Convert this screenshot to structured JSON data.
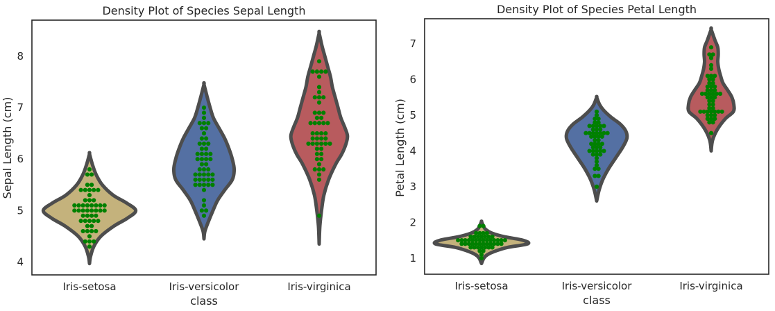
{
  "chart_data": [
    {
      "type": "violin",
      "title": "Density Plot of Species Sepal Length",
      "xlabel": "class",
      "ylabel": "Sepal Length (cm)",
      "ylim": [
        3.75,
        8.7
      ],
      "yticks": [
        4,
        5,
        6,
        7,
        8
      ],
      "categories": [
        "Iris-setosa",
        "Iris-versicolor",
        "Iris-virginica"
      ],
      "colors": [
        "#c4b27c",
        "#5470a3",
        "#b85b5e"
      ],
      "point_color": "#008000",
      "violins": [
        {
          "category": "Iris-setosa",
          "profile": [
            [
              3.97,
              0
            ],
            [
              4.1,
              0.02
            ],
            [
              4.3,
              0.09
            ],
            [
              4.5,
              0.24
            ],
            [
              4.7,
              0.52
            ],
            [
              4.85,
              0.8
            ],
            [
              5.0,
              0.98
            ],
            [
              5.15,
              0.78
            ],
            [
              5.3,
              0.5
            ],
            [
              5.5,
              0.27
            ],
            [
              5.7,
              0.14
            ],
            [
              5.9,
              0.06
            ],
            [
              6.1,
              0
            ]
          ],
          "points": [
            4.3,
            4.4,
            4.4,
            4.4,
            4.5,
            4.6,
            4.6,
            4.6,
            4.6,
            4.7,
            4.7,
            4.8,
            4.8,
            4.8,
            4.8,
            4.8,
            4.9,
            4.9,
            4.9,
            4.9,
            5.0,
            5.0,
            5.0,
            5.0,
            5.0,
            5.0,
            5.0,
            5.0,
            5.1,
            5.1,
            5.1,
            5.1,
            5.1,
            5.1,
            5.1,
            5.1,
            5.2,
            5.2,
            5.2,
            5.3,
            5.4,
            5.4,
            5.4,
            5.4,
            5.4,
            5.5,
            5.5,
            5.7,
            5.7,
            5.8
          ]
        },
        {
          "category": "Iris-versicolor",
          "profile": [
            [
              4.45,
              0
            ],
            [
              4.6,
              0.02
            ],
            [
              4.8,
              0.1
            ],
            [
              5.0,
              0.19
            ],
            [
              5.2,
              0.29
            ],
            [
              5.4,
              0.44
            ],
            [
              5.6,
              0.6
            ],
            [
              5.8,
              0.64
            ],
            [
              6.0,
              0.6
            ],
            [
              6.2,
              0.53
            ],
            [
              6.4,
              0.44
            ],
            [
              6.6,
              0.32
            ],
            [
              6.8,
              0.2
            ],
            [
              7.0,
              0.13
            ],
            [
              7.2,
              0.07
            ],
            [
              7.45,
              0
            ]
          ],
          "points": [
            4.9,
            5.0,
            5.0,
            5.1,
            5.2,
            5.4,
            5.5,
            5.5,
            5.5,
            5.5,
            5.5,
            5.6,
            5.6,
            5.6,
            5.6,
            5.6,
            5.7,
            5.7,
            5.7,
            5.7,
            5.7,
            5.8,
            5.8,
            5.8,
            5.9,
            5.9,
            6.0,
            6.0,
            6.0,
            6.0,
            6.1,
            6.1,
            6.1,
            6.1,
            6.2,
            6.2,
            6.3,
            6.3,
            6.3,
            6.4,
            6.4,
            6.5,
            6.6,
            6.6,
            6.7,
            6.7,
            6.7,
            6.8,
            6.9,
            7.0
          ]
        },
        {
          "category": "Iris-virginica",
          "profile": [
            [
              4.35,
              0
            ],
            [
              4.7,
              0.015
            ],
            [
              5.0,
              0.05
            ],
            [
              5.3,
              0.1
            ],
            [
              5.6,
              0.2
            ],
            [
              5.9,
              0.35
            ],
            [
              6.1,
              0.48
            ],
            [
              6.3,
              0.57
            ],
            [
              6.45,
              0.6
            ],
            [
              6.6,
              0.55
            ],
            [
              6.8,
              0.46
            ],
            [
              7.0,
              0.4
            ],
            [
              7.2,
              0.34
            ],
            [
              7.4,
              0.28
            ],
            [
              7.6,
              0.24
            ],
            [
              7.8,
              0.18
            ],
            [
              8.0,
              0.12
            ],
            [
              8.2,
              0.06
            ],
            [
              8.45,
              0
            ]
          ],
          "points": [
            4.9,
            5.6,
            5.7,
            5.8,
            5.8,
            5.8,
            5.9,
            6.0,
            6.0,
            6.1,
            6.1,
            6.2,
            6.2,
            6.3,
            6.3,
            6.3,
            6.3,
            6.3,
            6.3,
            6.4,
            6.4,
            6.4,
            6.4,
            6.5,
            6.5,
            6.5,
            6.5,
            6.7,
            6.7,
            6.7,
            6.7,
            6.7,
            6.8,
            6.8,
            6.9,
            6.9,
            6.9,
            7.1,
            7.2,
            7.2,
            7.2,
            7.3,
            7.4,
            7.6,
            7.7,
            7.7,
            7.7,
            7.7,
            7.9
          ]
        }
      ]
    },
    {
      "type": "violin",
      "title": "Density Plot of Species Petal Length",
      "xlabel": "class",
      "ylabel": "Petal Length (cm)",
      "ylim": [
        0.55,
        7.7
      ],
      "yticks": [
        1,
        2,
        3,
        4,
        5,
        6,
        7
      ],
      "categories": [
        "Iris-setosa",
        "Iris-versicolor",
        "Iris-virginica"
      ],
      "colors": [
        "#c4b27c",
        "#5470a3",
        "#b85b5e"
      ],
      "point_color": "#008000",
      "violins": [
        {
          "category": "Iris-setosa",
          "profile": [
            [
              0.85,
              0
            ],
            [
              1.0,
              0.05
            ],
            [
              1.1,
              0.13
            ],
            [
              1.2,
              0.3
            ],
            [
              1.3,
              0.55
            ],
            [
              1.4,
              0.98
            ],
            [
              1.5,
              0.88
            ],
            [
              1.6,
              0.48
            ],
            [
              1.7,
              0.22
            ],
            [
              1.8,
              0.09
            ],
            [
              1.9,
              0.04
            ],
            [
              2.02,
              0
            ]
          ],
          "points": [
            1.0,
            1.1,
            1.2,
            1.2,
            1.3,
            1.3,
            1.3,
            1.3,
            1.3,
            1.3,
            1.3,
            1.4,
            1.4,
            1.4,
            1.4,
            1.4,
            1.4,
            1.4,
            1.4,
            1.4,
            1.4,
            1.4,
            1.4,
            1.5,
            1.5,
            1.5,
            1.5,
            1.5,
            1.5,
            1.5,
            1.5,
            1.5,
            1.5,
            1.5,
            1.5,
            1.5,
            1.5,
            1.6,
            1.6,
            1.6,
            1.6,
            1.6,
            1.6,
            1.6,
            1.7,
            1.7,
            1.7,
            1.7,
            1.9,
            1.9
          ]
        },
        {
          "category": "Iris-versicolor",
          "profile": [
            [
              2.6,
              0
            ],
            [
              2.9,
              0.05
            ],
            [
              3.2,
              0.13
            ],
            [
              3.5,
              0.25
            ],
            [
              3.8,
              0.4
            ],
            [
              4.1,
              0.55
            ],
            [
              4.35,
              0.64
            ],
            [
              4.55,
              0.62
            ],
            [
              4.75,
              0.5
            ],
            [
              4.95,
              0.3
            ],
            [
              5.15,
              0.14
            ],
            [
              5.3,
              0.06
            ],
            [
              5.5,
              0
            ]
          ],
          "points": [
            3.0,
            3.3,
            3.3,
            3.5,
            3.5,
            3.6,
            3.7,
            3.8,
            3.9,
            3.9,
            3.9,
            4.0,
            4.0,
            4.0,
            4.0,
            4.0,
            4.1,
            4.1,
            4.1,
            4.2,
            4.2,
            4.2,
            4.2,
            4.3,
            4.3,
            4.4,
            4.4,
            4.4,
            4.4,
            4.5,
            4.5,
            4.5,
            4.5,
            4.5,
            4.5,
            4.5,
            4.6,
            4.6,
            4.6,
            4.7,
            4.7,
            4.7,
            4.7,
            4.7,
            4.8,
            4.8,
            4.9,
            4.9,
            5.0,
            5.1
          ]
        },
        {
          "category": "Iris-virginica",
          "profile": [
            [
              4.0,
              0
            ],
            [
              4.3,
              0.03
            ],
            [
              4.6,
              0.13
            ],
            [
              4.9,
              0.3
            ],
            [
              5.1,
              0.47
            ],
            [
              5.3,
              0.48
            ],
            [
              5.5,
              0.44
            ],
            [
              5.7,
              0.35
            ],
            [
              5.9,
              0.25
            ],
            [
              6.1,
              0.2
            ],
            [
              6.3,
              0.16
            ],
            [
              6.5,
              0.14
            ],
            [
              6.7,
              0.15
            ],
            [
              6.9,
              0.14
            ],
            [
              7.1,
              0.08
            ],
            [
              7.4,
              0
            ]
          ],
          "points": [
            4.5,
            4.8,
            4.8,
            4.9,
            4.9,
            4.9,
            5.0,
            5.0,
            5.0,
            5.1,
            5.1,
            5.1,
            5.1,
            5.1,
            5.1,
            5.1,
            5.2,
            5.2,
            5.3,
            5.3,
            5.4,
            5.4,
            5.5,
            5.5,
            5.5,
            5.6,
            5.6,
            5.6,
            5.6,
            5.6,
            5.6,
            5.7,
            5.7,
            5.7,
            5.8,
            5.8,
            5.8,
            5.9,
            5.9,
            6.0,
            6.0,
            6.1,
            6.1,
            6.1,
            6.3,
            6.4,
            6.6,
            6.7,
            6.7,
            6.9
          ]
        }
      ]
    }
  ]
}
